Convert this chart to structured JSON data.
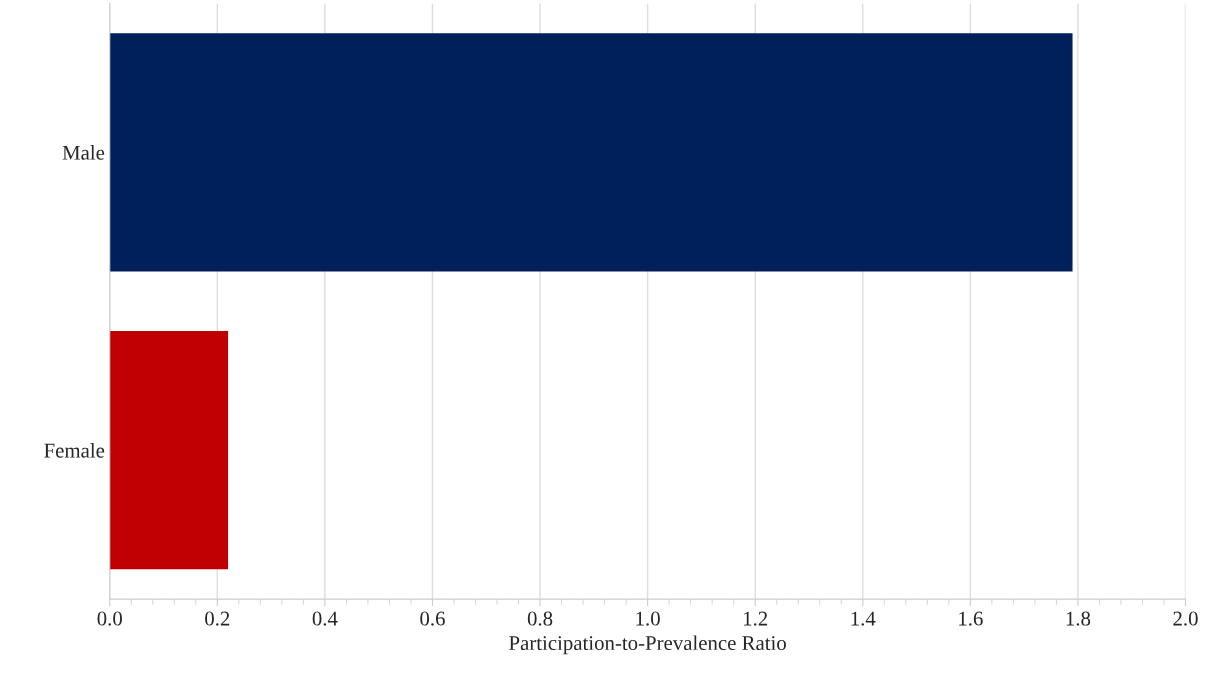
{
  "chart_data": {
    "type": "bar",
    "orientation": "horizontal",
    "categories": [
      "Male",
      "Female"
    ],
    "values": [
      1.79,
      0.22
    ],
    "colors": [
      "#00205b",
      "#c00000"
    ],
    "xlabel": "Participation-to-Prevalence Ratio",
    "xlim": [
      0,
      2
    ],
    "xticks": [
      {
        "value": 0,
        "label": "0.0"
      },
      {
        "value": 0.2,
        "label": "0.2"
      },
      {
        "value": 0.4,
        "label": "0.4"
      },
      {
        "value": 0.6,
        "label": "0.6"
      },
      {
        "value": 0.8,
        "label": "0.8"
      },
      {
        "value": 1,
        "label": "1.0"
      },
      {
        "value": 1.2,
        "label": "1.2"
      },
      {
        "value": 1.4,
        "label": "1.4"
      },
      {
        "value": 1.6,
        "label": "1.6"
      },
      {
        "value": 1.8,
        "label": "1.8"
      },
      {
        "value": 2,
        "label": "2.0"
      }
    ],
    "grid": "x",
    "legend": false
  }
}
